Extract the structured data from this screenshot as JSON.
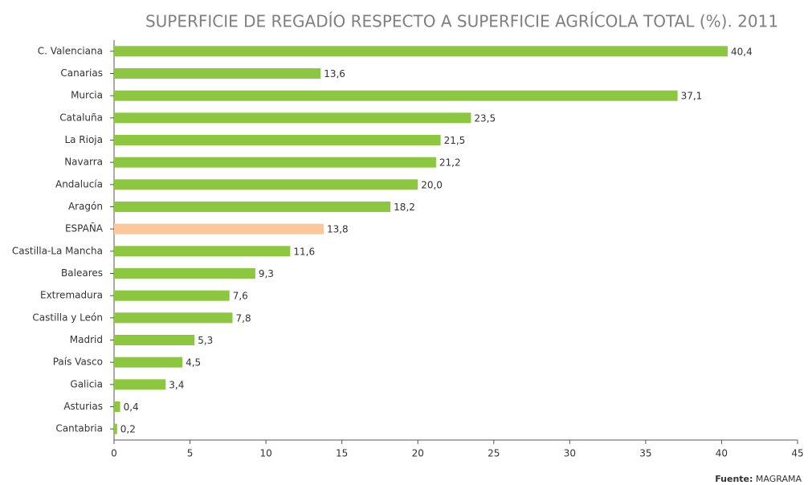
{
  "chart_data": {
    "type": "bar",
    "orientation": "horizontal",
    "title": "SUPERFICIE DE REGADÍO RESPECTO A SUPERFICIE AGRÍCOLA TOTAL (%). 2011",
    "categories": [
      "C. Valenciana",
      "Canarias",
      "Murcia",
      "Cataluña",
      "La Rioja",
      "Navarra",
      "Andalucía",
      "Aragón",
      "ESPAÑA",
      "Castilla-La Mancha",
      "Baleares",
      "Extremadura",
      "Castilla y León",
      "Madrid",
      "País Vasco",
      "Galicia",
      "Asturias",
      "Cantabria"
    ],
    "values": [
      40.4,
      13.6,
      37.1,
      23.5,
      21.5,
      21.2,
      20.0,
      18.2,
      13.8,
      11.6,
      9.3,
      7.6,
      7.8,
      5.3,
      4.5,
      3.4,
      0.4,
      0.2
    ],
    "value_labels": [
      "40,4",
      "13,6",
      "37,1",
      "23,5",
      "21,5",
      "21,2",
      "20,0",
      "18,2",
      "13,8",
      "11,6",
      "9,3",
      "7,6",
      "7,8",
      "5,3",
      "4,5",
      "3,4",
      "0,4",
      "0,2"
    ],
    "colors": [
      "#8dc63f",
      "#8dc63f",
      "#8dc63f",
      "#8dc63f",
      "#8dc63f",
      "#8dc63f",
      "#8dc63f",
      "#8dc63f",
      "#fdc79a",
      "#8dc63f",
      "#8dc63f",
      "#8dc63f",
      "#8dc63f",
      "#8dc63f",
      "#8dc63f",
      "#8dc63f",
      "#8dc63f",
      "#8dc63f"
    ],
    "xlim": [
      0,
      45
    ],
    "xticks": [
      0,
      5,
      10,
      15,
      20,
      25,
      30,
      35,
      40,
      45
    ],
    "source_label": "Fuente:",
    "source": "MAGRAMA"
  }
}
